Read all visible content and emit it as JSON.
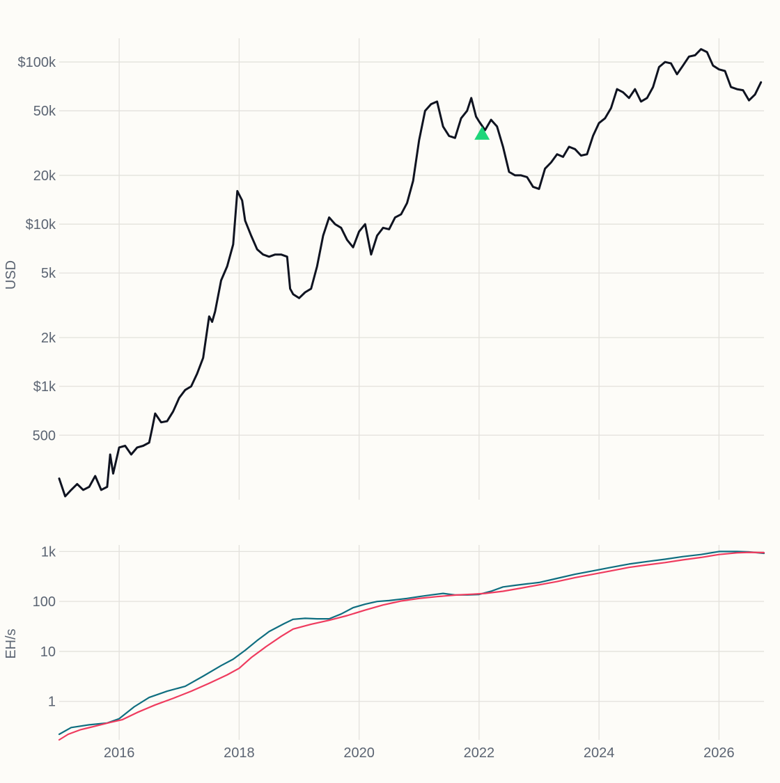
{
  "colors": {
    "price_line": "#0f1320",
    "hashrate": "#0f6e80",
    "hashrate_ma": "#ef3b5e",
    "marker": "#1ed67a",
    "grid": "#e3e1dc",
    "background": "#fdfcf8",
    "tick_text": "#5b6472"
  },
  "x_axis": {
    "range": [
      2015.0,
      2026.75
    ],
    "ticks": [
      {
        "value": 2016,
        "label": "2016"
      },
      {
        "value": 2018,
        "label": "2018"
      },
      {
        "value": 2020,
        "label": "2020"
      },
      {
        "value": 2022,
        "label": "2022"
      },
      {
        "value": 2024,
        "label": "2024"
      },
      {
        "value": 2026,
        "label": "2026"
      }
    ]
  },
  "chart_data": [
    {
      "type": "line",
      "ylabel": "USD",
      "yscale": "log",
      "ylim": [
        200,
        140000
      ],
      "grid": true,
      "y_ticks": [
        {
          "value": 100000,
          "label": "$100k"
        },
        {
          "value": 50000,
          "label": "50k"
        },
        {
          "value": 20000,
          "label": "20k"
        },
        {
          "value": 10000,
          "label": "$10k"
        },
        {
          "value": 5000,
          "label": "5k"
        },
        {
          "value": 2000,
          "label": "2k"
        },
        {
          "value": 1000,
          "label": "$1k"
        },
        {
          "value": 500,
          "label": "500"
        }
      ],
      "series": [
        {
          "x": [
            2015.0,
            2015.1,
            2015.2,
            2015.3,
            2015.4,
            2015.5,
            2015.6,
            2015.7,
            2015.8,
            2015.85,
            2015.9,
            2016.0,
            2016.1,
            2016.2,
            2016.3,
            2016.4,
            2016.5,
            2016.55,
            2016.6,
            2016.7,
            2016.8,
            2016.9,
            2017.0,
            2017.1,
            2017.2,
            2017.3,
            2017.4,
            2017.5,
            2017.55,
            2017.6,
            2017.7,
            2017.8,
            2017.9,
            2017.97,
            2018.05,
            2018.1,
            2018.2,
            2018.3,
            2018.4,
            2018.5,
            2018.6,
            2018.7,
            2018.8,
            2018.85,
            2018.9,
            2019.0,
            2019.1,
            2019.2,
            2019.3,
            2019.4,
            2019.5,
            2019.6,
            2019.7,
            2019.8,
            2019.9,
            2020.0,
            2020.1,
            2020.2,
            2020.3,
            2020.4,
            2020.5,
            2020.6,
            2020.7,
            2020.8,
            2020.9,
            2021.0,
            2021.1,
            2021.2,
            2021.3,
            2021.4,
            2021.5,
            2021.6,
            2021.7,
            2021.8,
            2021.87,
            2021.95,
            2022.0,
            2022.1,
            2022.2,
            2022.3,
            2022.4,
            2022.5,
            2022.6,
            2022.7,
            2022.8,
            2022.9,
            2023.0,
            2023.1,
            2023.2,
            2023.3,
            2023.4,
            2023.5,
            2023.6,
            2023.7,
            2023.8,
            2023.9,
            2024.0,
            2024.1,
            2024.2,
            2024.3,
            2024.4,
            2024.5,
            2024.6,
            2024.7,
            2024.8,
            2024.9,
            2025.0,
            2025.1,
            2025.2,
            2025.3,
            2025.4,
            2025.5,
            2025.6,
            2025.7,
            2025.8,
            2025.9,
            2026.0,
            2026.1,
            2026.2,
            2026.3,
            2026.4,
            2026.5,
            2026.6,
            2026.7
          ],
          "values": [
            270,
            210,
            230,
            250,
            230,
            240,
            280,
            230,
            240,
            380,
            290,
            420,
            430,
            380,
            420,
            430,
            450,
            550,
            680,
            600,
            610,
            700,
            850,
            950,
            1000,
            1200,
            1500,
            2700,
            2500,
            2900,
            4500,
            5500,
            7500,
            16000,
            14000,
            10500,
            8500,
            7000,
            6500,
            6300,
            6500,
            6500,
            6300,
            4000,
            3700,
            3500,
            3800,
            4000,
            5500,
            8500,
            11000,
            10000,
            9500,
            8000,
            7200,
            9000,
            10000,
            6500,
            8500,
            9500,
            9300,
            11000,
            11500,
            13500,
            18500,
            33000,
            50000,
            55000,
            57000,
            40000,
            35000,
            34000,
            45000,
            50000,
            60000,
            46000,
            43000,
            38000,
            44000,
            40000,
            30000,
            21000,
            20000,
            20000,
            19500,
            17000,
            16500,
            22000,
            24000,
            27000,
            26000,
            30000,
            29000,
            26500,
            27000,
            35000,
            42000,
            45000,
            52000,
            68000,
            65000,
            60000,
            68000,
            57000,
            60000,
            70000,
            93000,
            100000,
            98000,
            84000,
            95000,
            108000,
            110000,
            120000,
            115000,
            95000,
            90000,
            88000,
            70000,
            68000,
            67000,
            58000,
            63000,
            75000
          ]
        }
      ],
      "markers": [
        {
          "shape": "triangle-up",
          "x": 2022.05,
          "y": 36000
        }
      ]
    },
    {
      "type": "line",
      "ylabel": "EH/s",
      "yscale": "log",
      "ylim": [
        0.17,
        1350
      ],
      "grid": true,
      "y_ticks": [
        {
          "value": 1000,
          "label": "1k"
        },
        {
          "value": 100,
          "label": "100"
        },
        {
          "value": 10,
          "label": "10"
        },
        {
          "value": 1,
          "label": "1"
        }
      ],
      "series": [
        {
          "color_key": "hashrate",
          "x": [
            2015.0,
            2015.2,
            2015.5,
            2015.8,
            2016.0,
            2016.25,
            2016.5,
            2016.8,
            2017.1,
            2017.4,
            2017.7,
            2017.9,
            2018.1,
            2018.3,
            2018.5,
            2018.75,
            2018.9,
            2019.1,
            2019.3,
            2019.5,
            2019.7,
            2019.9,
            2020.1,
            2020.3,
            2020.5,
            2020.8,
            2021.0,
            2021.2,
            2021.4,
            2021.6,
            2021.8,
            2022.0,
            2022.2,
            2022.4,
            2022.6,
            2022.8,
            2023.0,
            2023.3,
            2023.6,
            2023.9,
            2024.2,
            2024.5,
            2024.8,
            2025.1,
            2025.4,
            2025.7,
            2026.0,
            2026.3,
            2026.5,
            2026.75
          ],
          "values": [
            0.22,
            0.3,
            0.34,
            0.37,
            0.45,
            0.78,
            1.2,
            1.6,
            2.0,
            3.2,
            5.2,
            7.0,
            10.5,
            16.5,
            25,
            36,
            44,
            46,
            45,
            45,
            56,
            75,
            88,
            100,
            104,
            115,
            125,
            135,
            145,
            135,
            135,
            138,
            160,
            195,
            210,
            225,
            240,
            290,
            350,
            410,
            480,
            560,
            630,
            700,
            790,
            870,
            1000,
            1000,
            980,
            920
          ]
        },
        {
          "color_key": "hashrate_ma",
          "x": [
            2015.0,
            2015.15,
            2015.35,
            2015.6,
            2015.85,
            2016.05,
            2016.3,
            2016.6,
            2016.9,
            2017.2,
            2017.5,
            2017.8,
            2018.0,
            2018.2,
            2018.45,
            2018.7,
            2018.9,
            2019.2,
            2019.5,
            2019.8,
            2020.1,
            2020.4,
            2020.7,
            2021.0,
            2021.3,
            2021.6,
            2021.9,
            2022.1,
            2022.4,
            2022.7,
            2023.0,
            2023.3,
            2023.6,
            2023.9,
            2024.2,
            2024.5,
            2024.8,
            2025.1,
            2025.4,
            2025.7,
            2026.0,
            2026.3,
            2026.5,
            2026.75
          ],
          "values": [
            0.17,
            0.22,
            0.27,
            0.32,
            0.38,
            0.43,
            0.6,
            0.85,
            1.15,
            1.6,
            2.3,
            3.4,
            4.6,
            7.5,
            12.5,
            20,
            28,
            35,
            42,
            52,
            67,
            85,
            102,
            115,
            125,
            134,
            140,
            145,
            160,
            185,
            215,
            250,
            300,
            350,
            410,
            480,
            540,
            600,
            680,
            760,
            870,
            940,
            960,
            950
          ]
        }
      ]
    }
  ]
}
